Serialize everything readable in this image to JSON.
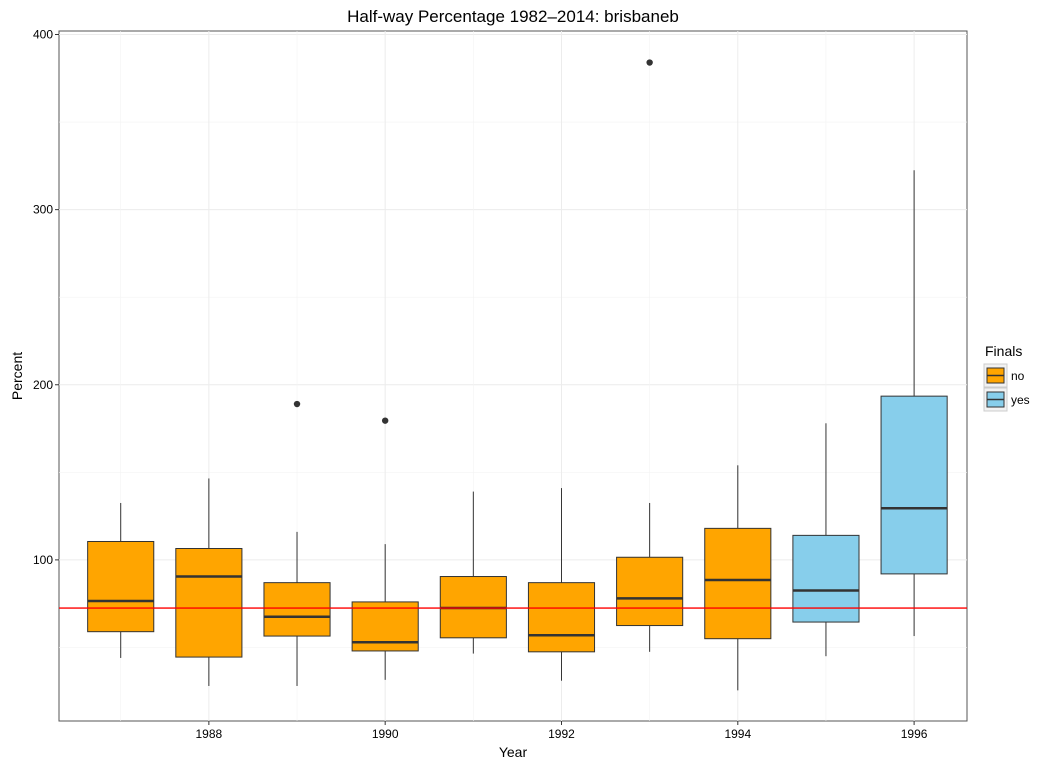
{
  "chart_data": {
    "type": "boxplot",
    "title": "Half-way Percentage 1982–2014: brisbaneb",
    "xlabel": "Year",
    "ylabel": "Percent",
    "x_ticks": [
      1988,
      1990,
      1992,
      1994,
      1996
    ],
    "y_ticks": [
      100,
      200,
      300,
      400
    ],
    "xlim": [
      1986.3,
      1996.6
    ],
    "ylim": [
      8,
      402
    ],
    "grid": true,
    "legend": {
      "title": "Finals",
      "position": "right",
      "entries": [
        {
          "label": "no",
          "color": "#FFA500"
        },
        {
          "label": "yes",
          "color": "#87CEEB"
        }
      ]
    },
    "reference_line": {
      "y": 72.5,
      "color": "#FF0000"
    },
    "boxes": [
      {
        "year": 1987,
        "finals": "no",
        "whisker_low": 44,
        "q1": 59,
        "median": 76.5,
        "q3": 110.5,
        "whisker_high": 132.5,
        "outliers": []
      },
      {
        "year": 1988,
        "finals": "no",
        "whisker_low": 28,
        "q1": 44.5,
        "median": 90.5,
        "q3": 106.5,
        "whisker_high": 146.5,
        "outliers": []
      },
      {
        "year": 1989,
        "finals": "no",
        "whisker_low": 28,
        "q1": 56.5,
        "median": 67.5,
        "q3": 87,
        "whisker_high": 116,
        "outliers": [
          189
        ]
      },
      {
        "year": 1990,
        "finals": "no",
        "whisker_low": 31.5,
        "q1": 48,
        "median": 53,
        "q3": 76,
        "whisker_high": 109,
        "outliers": [
          179.5
        ]
      },
      {
        "year": 1991,
        "finals": "no",
        "whisker_low": 46.5,
        "q1": 55.5,
        "median": 72.5,
        "q3": 90.5,
        "whisker_high": 139,
        "outliers": []
      },
      {
        "year": 1992,
        "finals": "no",
        "whisker_low": 31,
        "q1": 47.5,
        "median": 57,
        "q3": 87,
        "whisker_high": 141,
        "outliers": []
      },
      {
        "year": 1993,
        "finals": "no",
        "whisker_low": 47.5,
        "q1": 62.5,
        "median": 78,
        "q3": 101.5,
        "whisker_high": 132.5,
        "outliers": [
          384
        ]
      },
      {
        "year": 1994,
        "finals": "no",
        "whisker_low": 25.5,
        "q1": 55,
        "median": 88.5,
        "q3": 118,
        "whisker_high": 154,
        "outliers": []
      },
      {
        "year": 1995,
        "finals": "yes",
        "whisker_low": 45,
        "q1": 64.5,
        "median": 82.5,
        "q3": 114,
        "whisker_high": 178,
        "outliers": []
      },
      {
        "year": 1996,
        "finals": "yes",
        "whisker_low": 56.5,
        "q1": 92,
        "median": 129.5,
        "q3": 193.5,
        "whisker_high": 322.5,
        "outliers": []
      }
    ]
  }
}
